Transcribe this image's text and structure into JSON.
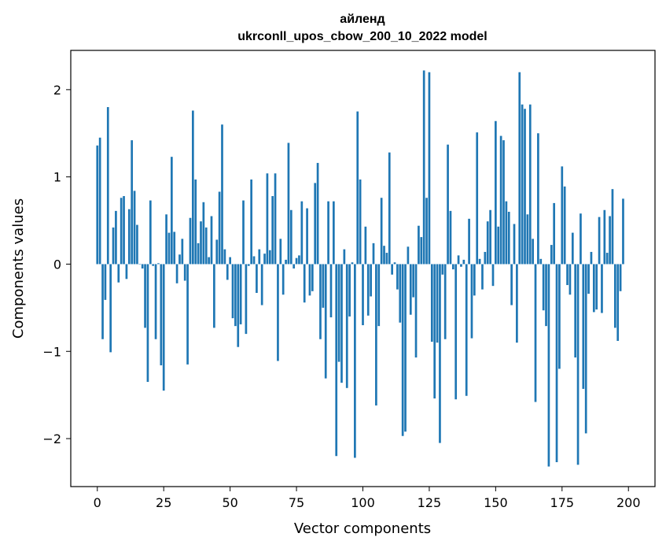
{
  "chart_data": {
    "type": "bar",
    "title": "айленд",
    "subtitle": "ukrconll_upos_cbow_200_10_2022 model",
    "xlabel": "Vector components",
    "ylabel": "Components values",
    "xlim": [
      -10,
      210
    ],
    "ylim": [
      -2.55,
      2.45
    ],
    "xticks": [
      0,
      25,
      50,
      75,
      100,
      125,
      150,
      175,
      200
    ],
    "yticks": [
      -2,
      -1,
      0,
      1,
      2
    ],
    "xtick_labels": [
      "0",
      "25",
      "50",
      "75",
      "100",
      "125",
      "150",
      "175",
      "200"
    ],
    "ytick_labels": [
      "−2",
      "−1",
      "0",
      "1",
      "2"
    ],
    "grid": false,
    "bar_color": "#1f77b4",
    "values": [
      1.36,
      1.45,
      -0.86,
      -0.41,
      1.8,
      -1.01,
      0.42,
      0.61,
      -0.21,
      0.76,
      0.78,
      -0.17,
      0.63,
      1.42,
      0.84,
      0.45,
      0.0,
      -0.05,
      -0.73,
      -1.35,
      0.73,
      -0.02,
      -0.86,
      0.01,
      -1.16,
      -1.45,
      0.57,
      0.36,
      1.23,
      0.37,
      -0.22,
      0.11,
      0.29,
      -0.19,
      -1.15,
      0.53,
      1.76,
      0.97,
      0.24,
      0.49,
      0.71,
      0.42,
      0.08,
      0.55,
      -0.73,
      0.28,
      0.83,
      1.6,
      0.17,
      -0.18,
      0.08,
      -0.62,
      -0.71,
      -0.95,
      -0.69,
      0.73,
      -0.8,
      -0.02,
      0.97,
      0.09,
      -0.33,
      0.17,
      -0.47,
      0.12,
      1.04,
      0.16,
      0.78,
      1.04,
      -1.11,
      0.29,
      -0.35,
      0.05,
      1.39,
      0.62,
      -0.05,
      0.07,
      0.1,
      0.72,
      -0.44,
      0.64,
      -0.36,
      -0.31,
      0.93,
      1.16,
      -0.86,
      -0.5,
      -1.31,
      0.72,
      -0.61,
      0.72,
      -2.2,
      -1.12,
      -1.36,
      0.17,
      -1.42,
      -0.6,
      0.02,
      -2.22,
      1.75,
      0.97,
      -0.7,
      0.43,
      -0.59,
      -0.37,
      0.24,
      -1.62,
      -0.71,
      0.76,
      0.21,
      0.13,
      1.28,
      -0.12,
      0.02,
      -0.29,
      -0.67,
      -1.97,
      -1.92,
      0.2,
      -0.58,
      -0.38,
      -1.07,
      0.44,
      0.31,
      2.22,
      0.76,
      2.2,
      -0.89,
      -1.54,
      -0.9,
      -2.05,
      -0.12,
      -0.86,
      1.37,
      0.61,
      -0.06,
      -1.55,
      0.1,
      -0.03,
      0.05,
      -1.51,
      0.52,
      -0.85,
      -0.36,
      1.51,
      0.06,
      -0.29,
      0.14,
      0.49,
      0.62,
      -0.25,
      1.64,
      0.43,
      1.47,
      1.42,
      0.72,
      0.6,
      -0.47,
      0.46,
      -0.9,
      2.2,
      1.83,
      1.78,
      0.57,
      1.83,
      0.29,
      -1.58,
      1.5,
      0.06,
      -0.53,
      -0.71,
      -2.32,
      0.22,
      0.7,
      -2.27,
      -1.2,
      1.12,
      0.89,
      -0.24,
      -0.35,
      0.36,
      -1.07,
      -2.3,
      0.58,
      -1.43,
      -1.94,
      -0.34,
      0.14,
      -0.55,
      -0.52,
      0.54,
      -0.56,
      0.62,
      0.13,
      0.55,
      0.86,
      -0.73,
      -0.88,
      -0.31,
      0.75
    ]
  }
}
